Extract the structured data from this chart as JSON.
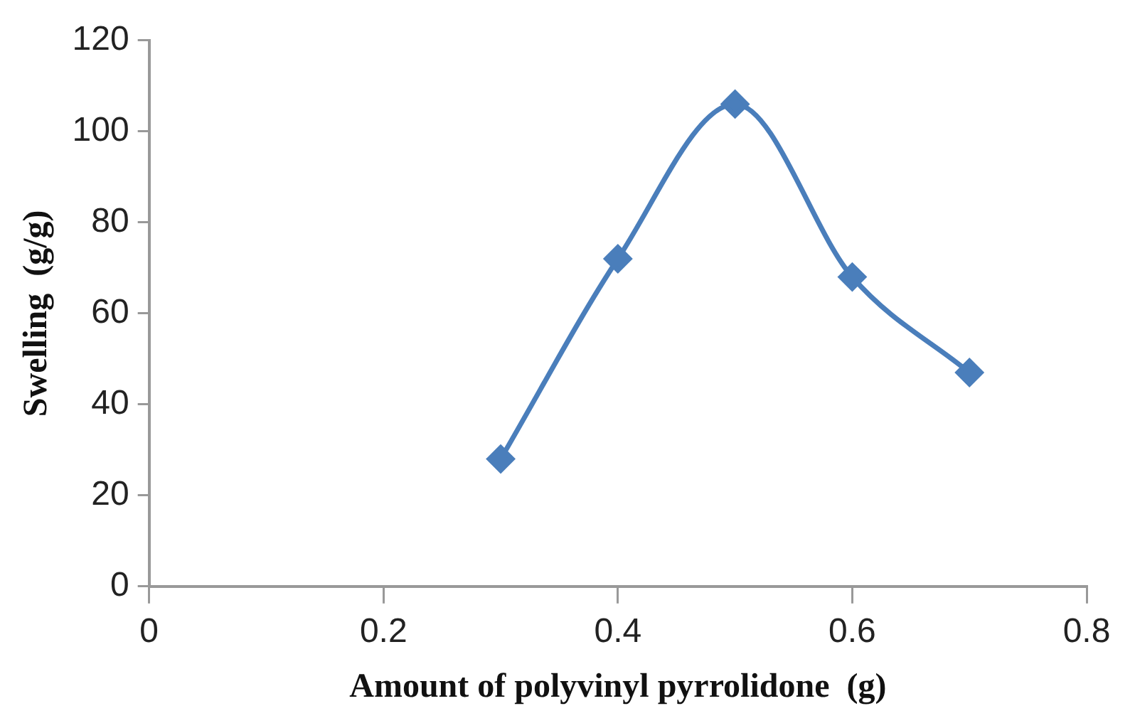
{
  "chart_data": {
    "type": "line",
    "xlabel": "Amount of polyvinyl pyrrolidone  (g)",
    "ylabel": "Swelling  (g/g)",
    "x": [
      0.3,
      0.4,
      0.5,
      0.6,
      0.7
    ],
    "series": [
      {
        "color": "#4a7ebb",
        "values": [
          28,
          72,
          106,
          68,
          47
        ]
      }
    ],
    "xlim": [
      0,
      0.8
    ],
    "xticks": [
      0,
      0.2,
      0.4,
      0.6,
      0.8
    ],
    "ylim": [
      0,
      120
    ],
    "yticks": [
      0,
      20,
      40,
      60,
      80,
      100,
      120
    ],
    "marker": "diamond",
    "line_style": "solid",
    "grid": false,
    "legend": false
  }
}
